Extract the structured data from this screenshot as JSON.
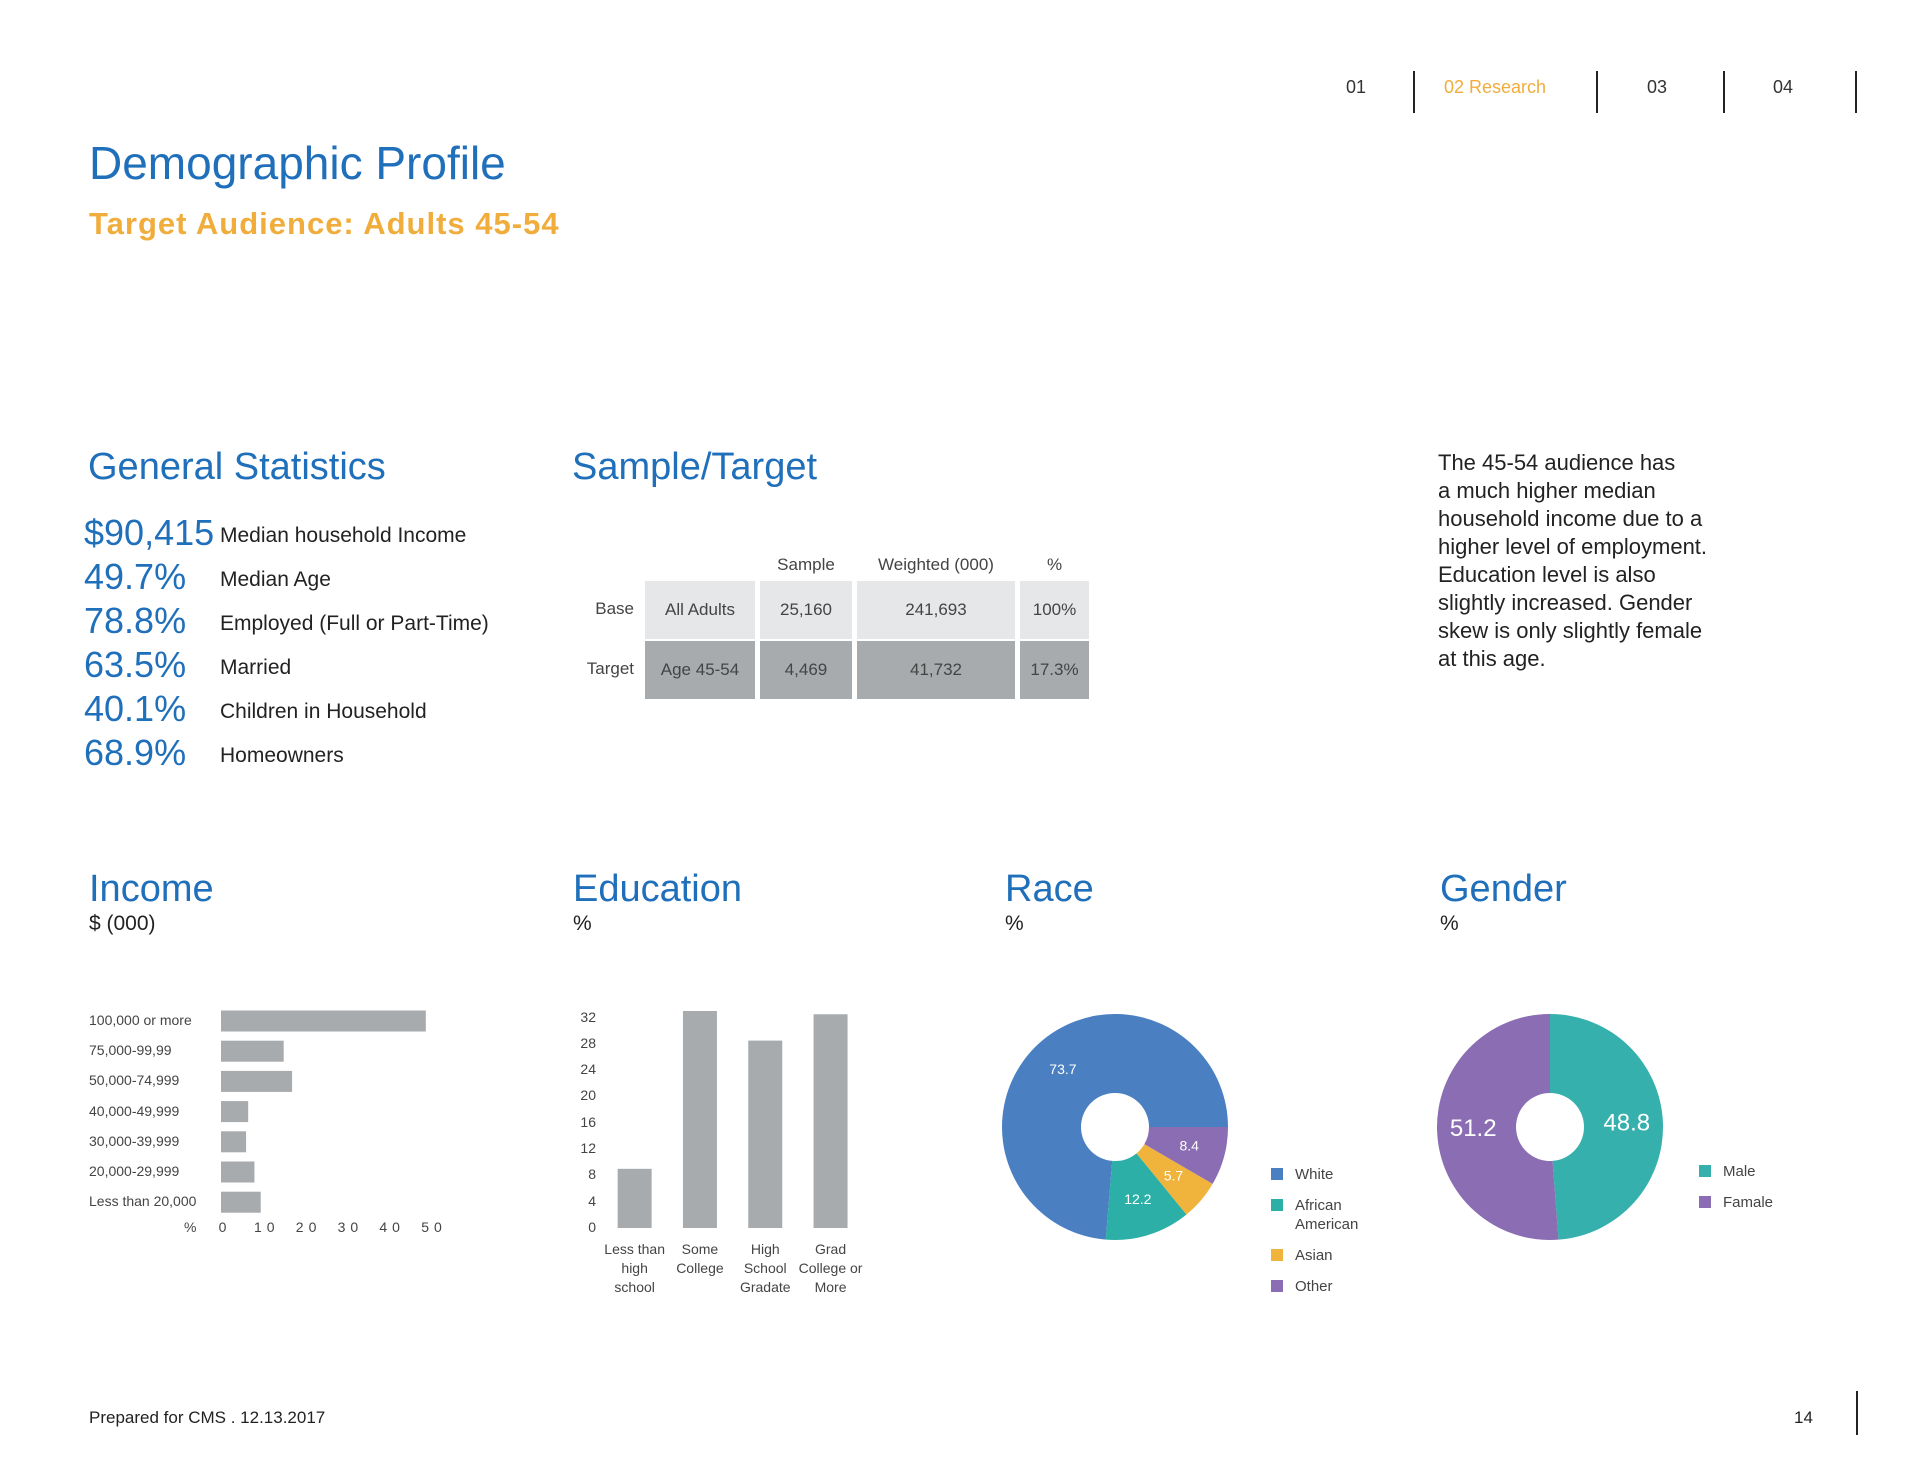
{
  "nav": {
    "items": [
      "01",
      "02 Research",
      "03",
      "04"
    ]
  },
  "header": {
    "title": "Demographic Profile",
    "subtitle": "Target Audience: Adults 45-54"
  },
  "general_statistics": {
    "title": "General Statistics",
    "items": [
      {
        "value": "$90,415",
        "label": "Median household Income"
      },
      {
        "value": "49.7%",
        "label": "Median Age"
      },
      {
        "value": "78.8%",
        "label": "Employed (Full or Part-Time)"
      },
      {
        "value": "63.5%",
        "label": "Married"
      },
      {
        "value": "40.1%",
        "label": "Children in Household"
      },
      {
        "value": "68.9%",
        "label": "Homeowners"
      }
    ]
  },
  "sample_target": {
    "title": "Sample/Target",
    "columns": [
      "Sample",
      "Weighted (000)",
      "%"
    ],
    "rows": [
      [
        "Base",
        "All Adults",
        "25,160",
        "241,693",
        "100%"
      ],
      [
        "Target",
        "Age 45-54",
        "4,469",
        "41,732",
        "17.3%"
      ]
    ]
  },
  "summary": {
    "lines": [
      "The 45-54 audience has",
      "a much higher median",
      "household income due to a",
      "higher level of employment.",
      "Education level is also",
      "slightly increased. Gender",
      "skew is only slightly female",
      "at this age."
    ]
  },
  "chart_data": [
    {
      "type": "hbar",
      "title": "Income",
      "subtitle": "$ (000)",
      "categories": [
        "100,000 or more",
        "75,000-99,99",
        "50,000-74,999",
        "40,000-49,999",
        "30,000-39,999",
        "20,000-29,999",
        "Less than 20,000"
      ],
      "values": [
        49,
        15,
        17,
        6.5,
        6,
        8,
        9.5
      ],
      "color": "#a7abae",
      "xlabel": "%",
      "xlim": [
        0,
        50
      ],
      "xticks": [
        0,
        10,
        20,
        30,
        40,
        50
      ]
    },
    {
      "type": "bar",
      "title": "Education",
      "subtitle": "%",
      "categories": [
        "Less than high school",
        "Some College",
        "High School Gradate",
        "Grad College or More"
      ],
      "values": [
        9,
        33,
        28.5,
        32.5
      ],
      "color": "#a7abae",
      "ylim": [
        0,
        33
      ],
      "yticks": [
        0,
        4,
        8,
        12,
        16,
        20,
        24,
        28,
        32
      ]
    },
    {
      "type": "donut",
      "title": "Race",
      "subtitle": "%",
      "categories": [
        "White",
        "African American",
        "Asian",
        "Other"
      ],
      "values": [
        73.7,
        12.2,
        5.7,
        8.4
      ],
      "colors": [
        "#4a7fc2",
        "#2bafa7",
        "#f0b43c",
        "#8a6db3"
      ]
    },
    {
      "type": "donut",
      "title": "Gender",
      "subtitle": "%",
      "categories": [
        "Male",
        "Famale"
      ],
      "values": [
        48.8,
        51.2
      ],
      "colors": [
        "#35b0ad",
        "#8a6db3"
      ]
    }
  ],
  "footer": {
    "text": "Prepared for CMS . 12.13.2017",
    "page": "14"
  }
}
